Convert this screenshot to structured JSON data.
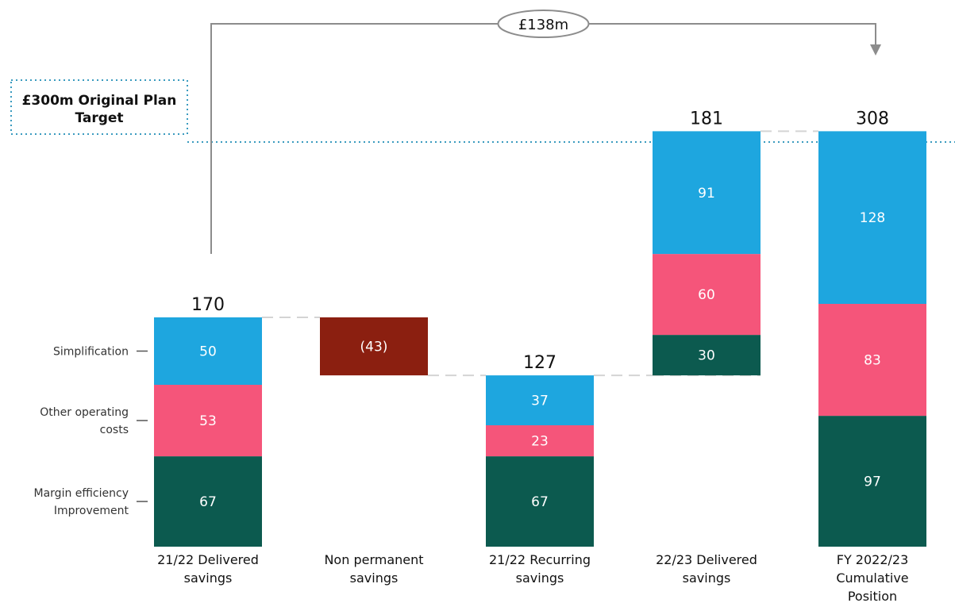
{
  "chart_data": {
    "type": "bar",
    "subtype": "waterfall-stacked",
    "title": "",
    "categories": [
      [
        "21/22 Delivered",
        "savings"
      ],
      [
        "Non permanent",
        "savings"
      ],
      [
        "21/22 Recurring",
        "savings"
      ],
      [
        "22/23 Delivered",
        "savings"
      ],
      [
        "FY 2022/23",
        "Cumulative",
        "Position"
      ]
    ],
    "series": [
      {
        "name": "Margin efficiency Improvement",
        "legend_lines": [
          "Margin efficiency",
          "Improvement"
        ],
        "color": "#0c5a4f",
        "values": [
          67,
          null,
          67,
          30,
          97
        ]
      },
      {
        "name": "Other operating costs",
        "legend_lines": [
          "Other operating",
          "costs"
        ],
        "color": "#f5557a",
        "values": [
          53,
          null,
          23,
          60,
          83
        ]
      },
      {
        "name": "Simplification",
        "legend_lines": [
          "Simplification"
        ],
        "color": "#1ea6df",
        "values": [
          50,
          null,
          37,
          91,
          128
        ]
      }
    ],
    "adjustment": {
      "category_index": 1,
      "value": -43,
      "label": "(43)",
      "color": "#8b1f10"
    },
    "bar_base": [
      0,
      127,
      0,
      127,
      0
    ],
    "totals": [
      "170",
      null,
      "127",
      "181",
      "308"
    ],
    "target": {
      "value": 300,
      "label_lines": [
        "£300m Original Plan",
        "Target"
      ],
      "color": "#3a9bbf"
    },
    "bracket": {
      "from_index": 0,
      "to_index": 4,
      "label": "£138m"
    },
    "ylim": [
      0,
      320
    ]
  }
}
